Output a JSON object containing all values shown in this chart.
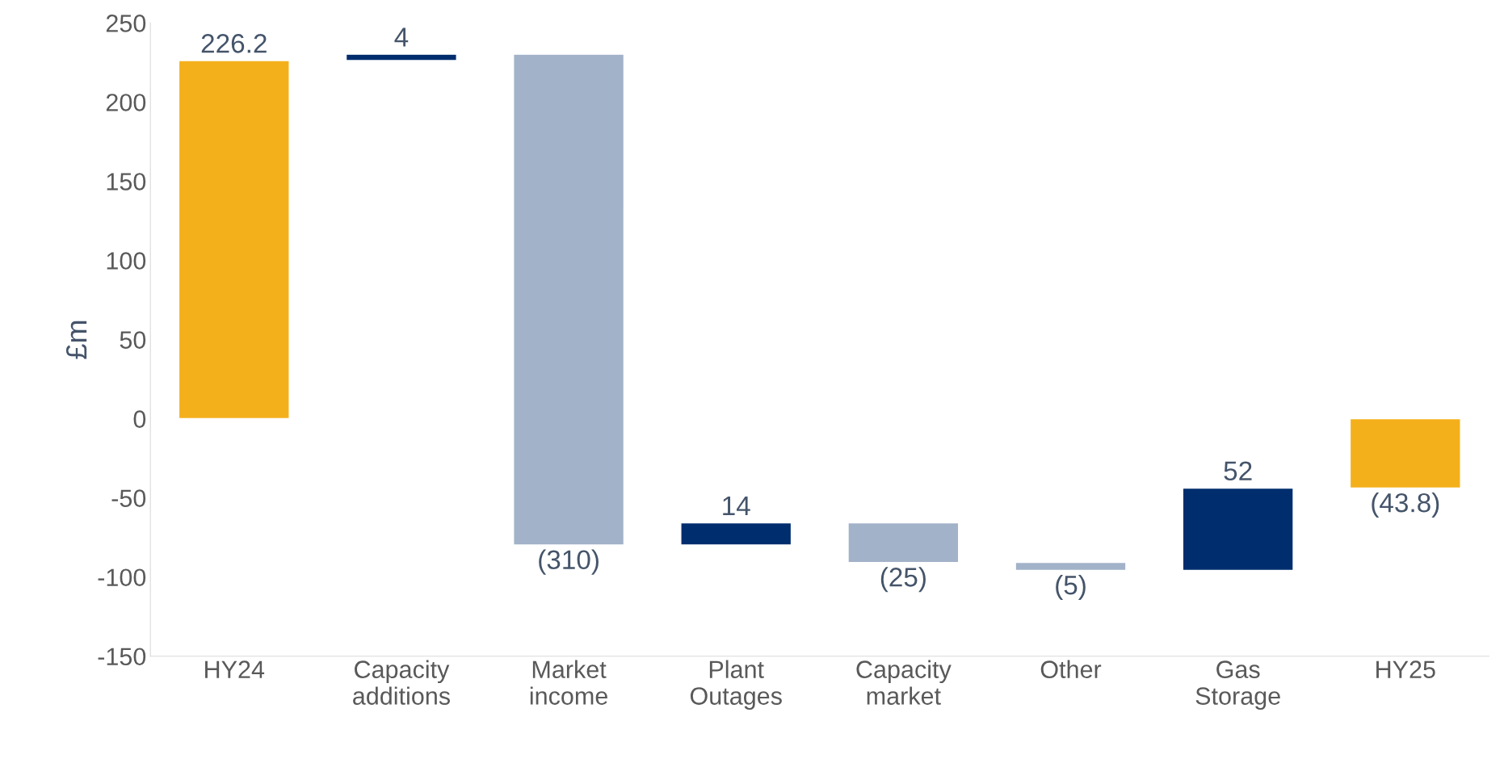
{
  "chart_data": {
    "type": "bar",
    "ylabel": "£m",
    "categories": [
      "HY24",
      "Capacity additions",
      "Market income",
      "Plant Outages",
      "Capacity market",
      "Other",
      "Gas Storage",
      "HY25"
    ],
    "values": [
      226.2,
      4,
      -310,
      14,
      -25,
      -5,
      52,
      -43.8
    ],
    "base": [
      0,
      226.2,
      230.2,
      -79.8,
      -65.8,
      -90.8,
      -95.8,
      0
    ],
    "colors": [
      "#f4b01b",
      "#002d6e",
      "#a2b2c8",
      "#002d6e",
      "#a2b2c8",
      "#a2b2c8",
      "#002d6e",
      "#f4b01b"
    ],
    "value_labels": [
      "226.2",
      "4",
      "(310)",
      "14",
      "(25)",
      "(5)",
      "52",
      "(43.8)"
    ],
    "ylim": [
      -150,
      250
    ],
    "yticks": [
      -150,
      -100,
      -50,
      0,
      50,
      100,
      150,
      200,
      250
    ],
    "grid": false,
    "legend": false
  }
}
